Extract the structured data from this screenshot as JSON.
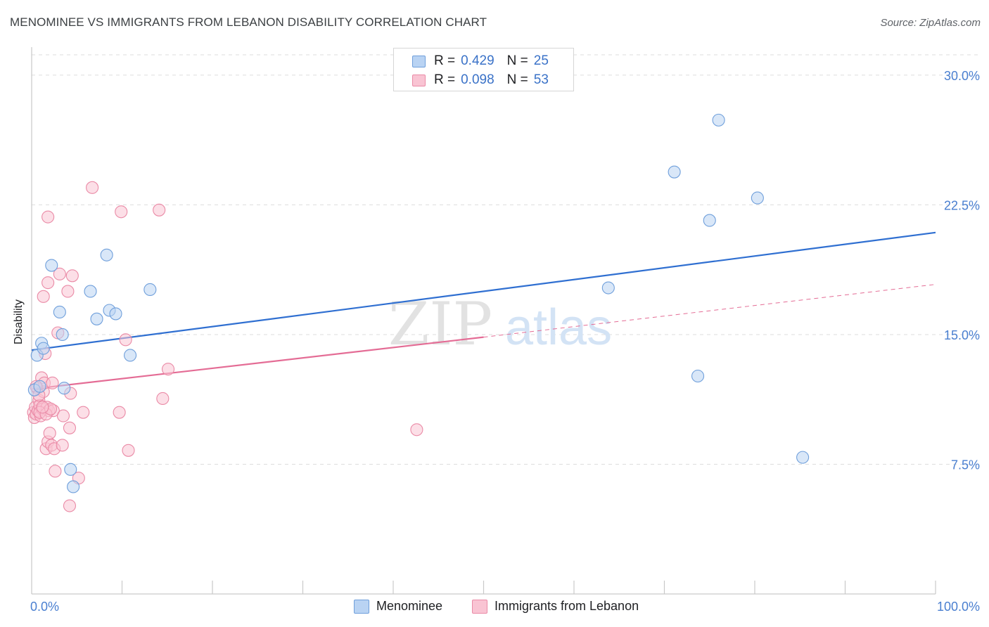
{
  "title": "MENOMINEE VS IMMIGRANTS FROM LEBANON DISABILITY CORRELATION CHART",
  "source": "Source: ZipAtlas.com",
  "watermark": {
    "zip": "ZIP",
    "atlas": "atlas"
  },
  "legend": {
    "rows": [
      {
        "r_label": "R =",
        "r_value": "0.429",
        "n_label": "N =",
        "n_value": "25"
      },
      {
        "r_label": "R =",
        "r_value": "0.098",
        "n_label": "N =",
        "n_value": "53"
      }
    ]
  },
  "colors": {
    "menominee_fill": "#b9d3f3",
    "menominee_stroke": "#6f9fdb",
    "menominee_line": "#2f6fd1",
    "lebanon_fill": "#f9c4d3",
    "lebanon_stroke": "#ea8aa6",
    "lebanon_line": "#e46c95",
    "grid": "#dddddd",
    "axis_text": "#4a7fd0"
  },
  "chart_data": {
    "type": "scatter",
    "xlabel": "",
    "ylabel": "Disability",
    "xlim": [
      0,
      100
    ],
    "ylim": [
      0,
      31.5
    ],
    "x_tick_labels": [
      "0.0%",
      "100.0%"
    ],
    "y_ticks": [
      7.5,
      15.0,
      22.5,
      30.0
    ],
    "y_tick_labels": [
      "7.5%",
      "15.0%",
      "22.5%",
      "30.0%"
    ],
    "grid": true,
    "legend_position": "top-center",
    "series": [
      {
        "name": "Menominee",
        "r": 0.429,
        "n": 25,
        "trend": {
          "x": [
            0,
            100
          ],
          "y": [
            14.1,
            20.9
          ]
        },
        "points": [
          [
            0.3,
            11.8
          ],
          [
            0.6,
            13.8
          ],
          [
            0.9,
            12.0
          ],
          [
            1.1,
            14.5
          ],
          [
            1.3,
            14.2
          ],
          [
            2.2,
            19.0
          ],
          [
            3.1,
            16.3
          ],
          [
            3.4,
            15.0
          ],
          [
            3.6,
            11.9
          ],
          [
            4.3,
            7.2
          ],
          [
            4.6,
            6.2
          ],
          [
            6.5,
            17.5
          ],
          [
            7.2,
            15.9
          ],
          [
            8.3,
            19.6
          ],
          [
            8.6,
            16.4
          ],
          [
            9.3,
            16.2
          ],
          [
            10.9,
            13.8
          ],
          [
            13.1,
            17.6
          ],
          [
            63.8,
            17.7
          ],
          [
            71.1,
            24.4
          ],
          [
            73.7,
            12.6
          ],
          [
            75.0,
            21.6
          ],
          [
            76.0,
            27.4
          ],
          [
            80.3,
            22.9
          ],
          [
            85.3,
            7.9
          ]
        ]
      },
      {
        "name": "Immigrants from Lebanon",
        "r": 0.098,
        "n": 53,
        "trend_solid": {
          "x": [
            0,
            50
          ],
          "y": [
            11.85,
            14.85
          ]
        },
        "trend_dashed": {
          "x": [
            50,
            100
          ],
          "y": [
            14.85,
            17.9
          ]
        },
        "points": [
          [
            0.2,
            10.5
          ],
          [
            0.3,
            10.2
          ],
          [
            0.4,
            10.8
          ],
          [
            0.5,
            10.4
          ],
          [
            0.6,
            11.9
          ],
          [
            0.7,
            10.6
          ],
          [
            0.8,
            11.2
          ],
          [
            0.9,
            10.9
          ],
          [
            1.0,
            10.3
          ],
          [
            1.1,
            12.5
          ],
          [
            1.2,
            10.7
          ],
          [
            1.3,
            11.7
          ],
          [
            1.3,
            17.2
          ],
          [
            1.4,
            12.2
          ],
          [
            1.5,
            13.9
          ],
          [
            1.6,
            8.4
          ],
          [
            1.7,
            10.8
          ],
          [
            1.8,
            8.8
          ],
          [
            1.8,
            18.0
          ],
          [
            1.8,
            21.8
          ],
          [
            1.9,
            10.6
          ],
          [
            2.0,
            9.3
          ],
          [
            2.2,
            8.6
          ],
          [
            2.3,
            12.2
          ],
          [
            2.4,
            10.6
          ],
          [
            2.5,
            8.4
          ],
          [
            2.6,
            7.1
          ],
          [
            2.9,
            15.1
          ],
          [
            3.1,
            18.5
          ],
          [
            3.4,
            8.6
          ],
          [
            3.5,
            10.3
          ],
          [
            4.0,
            17.5
          ],
          [
            4.2,
            9.6
          ],
          [
            4.2,
            5.1
          ],
          [
            4.3,
            11.6
          ],
          [
            4.5,
            18.4
          ],
          [
            5.2,
            6.7
          ],
          [
            5.7,
            10.5
          ],
          [
            6.7,
            23.5
          ],
          [
            9.7,
            10.5
          ],
          [
            9.9,
            22.1
          ],
          [
            10.4,
            14.7
          ],
          [
            10.7,
            8.3
          ],
          [
            14.1,
            22.2
          ],
          [
            14.5,
            11.3
          ],
          [
            15.1,
            13.0
          ],
          [
            42.6,
            9.5
          ],
          [
            0.5,
            12.0
          ],
          [
            0.9,
            10.5
          ],
          [
            1.6,
            10.4
          ],
          [
            2.1,
            10.7
          ],
          [
            0.8,
            11.5
          ],
          [
            1.2,
            10.8
          ]
        ]
      }
    ]
  },
  "bottom_legend": [
    "Menominee",
    "Immigrants from Lebanon"
  ]
}
